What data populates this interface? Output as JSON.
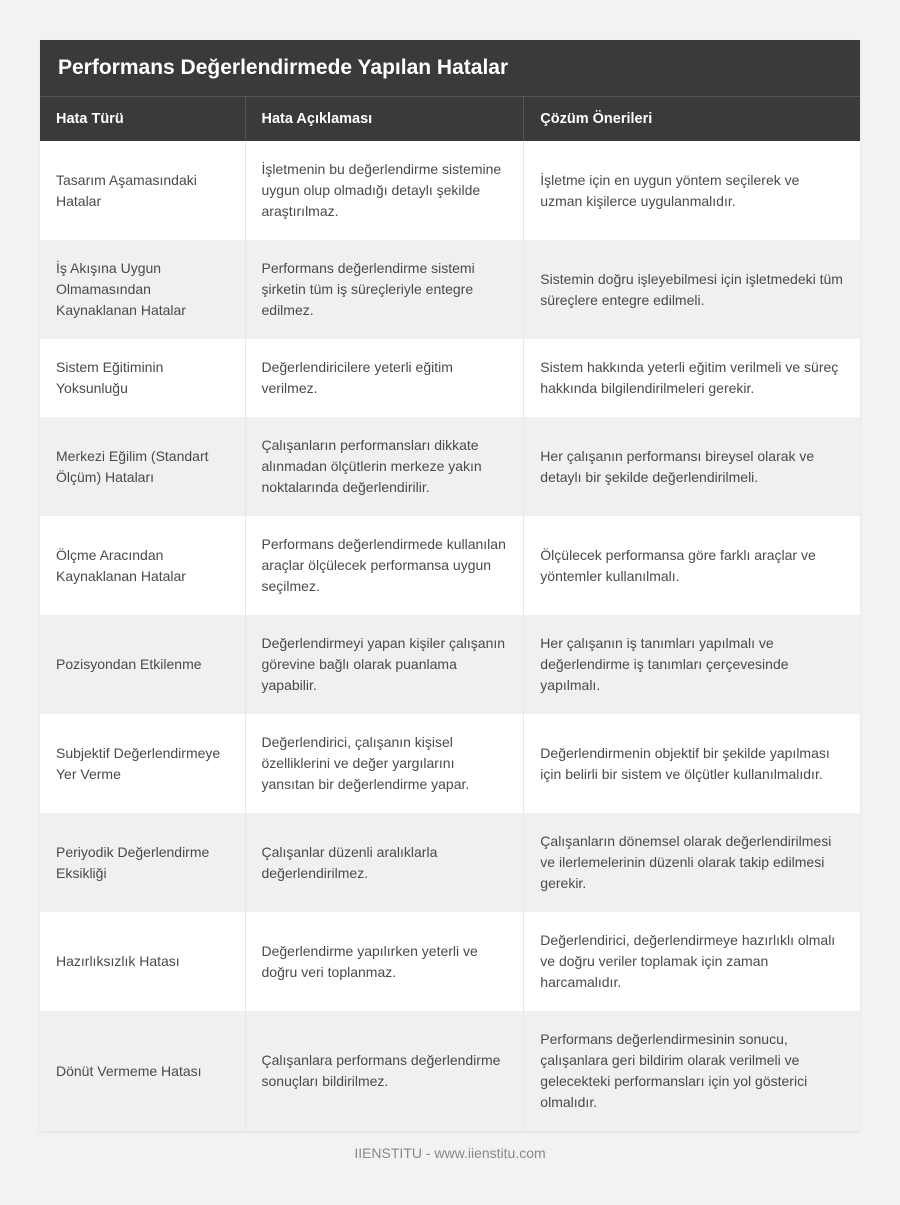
{
  "title": "Performans Değerlendirmede Yapılan Hatalar",
  "columns": [
    "Hata Türü",
    "Hata Açıklaması",
    "Çözüm Önerileri"
  ],
  "rows": [
    {
      "type": "Tasarım Aşamasındaki Hatalar",
      "desc": "İşletmenin bu değerlendirme sistemine uygun olup olmadığı detaylı şekilde araştırılmaz.",
      "sol": "İşletme için en uygun yöntem seçilerek ve uzman kişilerce uygulanmalıdır."
    },
    {
      "type": "İş Akışına Uygun Olmamasından Kaynaklanan Hatalar",
      "desc": "Performans değerlendirme sistemi şirketin tüm iş süreçleriyle entegre edilmez.",
      "sol": "Sistemin doğru işleyebilmesi için işletmedeki tüm süreçlere entegre edilmeli."
    },
    {
      "type": "Sistem Eğitiminin Yoksunluğu",
      "desc": "Değerlendiricilere yeterli eğitim verilmez.",
      "sol": "Sistem hakkında yeterli eğitim verilmeli ve süreç hakkında bilgilendirilmeleri gerekir."
    },
    {
      "type": "Merkezi Eğilim (Standart Ölçüm) Hataları",
      "desc": "Çalışanların performansları dikkate alınmadan ölçütlerin merkeze yakın noktalarında değerlendirilir.",
      "sol": "Her çalışanın performansı bireysel olarak ve detaylı bir şekilde değerlendirilmeli."
    },
    {
      "type": "Ölçme Aracından Kaynaklanan Hatalar",
      "desc": "Performans değerlendirmede kullanılan araçlar ölçülecek performansa uygun seçilmez.",
      "sol": "Ölçülecek performansa göre farklı araçlar ve yöntemler kullanılmalı."
    },
    {
      "type": "Pozisyondan Etkilenme",
      "desc": "Değerlendirmeyi yapan kişiler çalışanın görevine bağlı olarak puanlama yapabilir.",
      "sol": "Her çalışanın iş tanımları yapılmalı ve değerlendirme iş tanımları çerçevesinde yapılmalı."
    },
    {
      "type": "Subjektif Değerlendirmeye Yer Verme",
      "desc": "Değerlendirici, çalışanın kişisel özelliklerini ve değer yargılarını yansıtan bir değerlendirme yapar.",
      "sol": "Değerlendirmenin objektif bir şekilde yapılması için belirli bir sistem ve ölçütler kullanılmalıdır."
    },
    {
      "type": "Periyodik Değerlendirme Eksikliği",
      "desc": "Çalışanlar düzenli aralıklarla değerlendirilmez.",
      "sol": "Çalışanların dönemsel olarak değerlendirilmesi ve ilerlemelerinin düzenli olarak takip edilmesi gerekir."
    },
    {
      "type": "Hazırlıksızlık Hatası",
      "desc": "Değerlendirme yapılırken yeterli ve doğru veri toplanmaz.",
      "sol": "Değerlendirici, değerlendirmeye hazırlıklı olmalı ve doğru veriler toplamak için zaman harcamalıdır."
    },
    {
      "type": "Dönüt Vermeme Hatası",
      "desc": "Çalışanlara performans değerlendirme sonuçları bildirilmez.",
      "sol": "Performans değerlendirmesinin sonucu, çalışanlara geri bildirim olarak verilmeli ve gelecekteki performansları için yol gösterici olmalıdır."
    }
  ],
  "footer": "IIENSTITU - www.iienstitu.com",
  "styling": {
    "page_bg": "#f2f2f2",
    "header_bg": "#3a3a3a",
    "header_text": "#ffffff",
    "row_odd_bg": "#ffffff",
    "row_even_bg": "#f0f0f0",
    "cell_text": "#4a4a4a",
    "footer_text": "#888888",
    "title_fontsize": 21,
    "th_fontsize": 14.5,
    "td_fontsize": 14,
    "col_widths": [
      "25%",
      "34%",
      "41%"
    ]
  }
}
